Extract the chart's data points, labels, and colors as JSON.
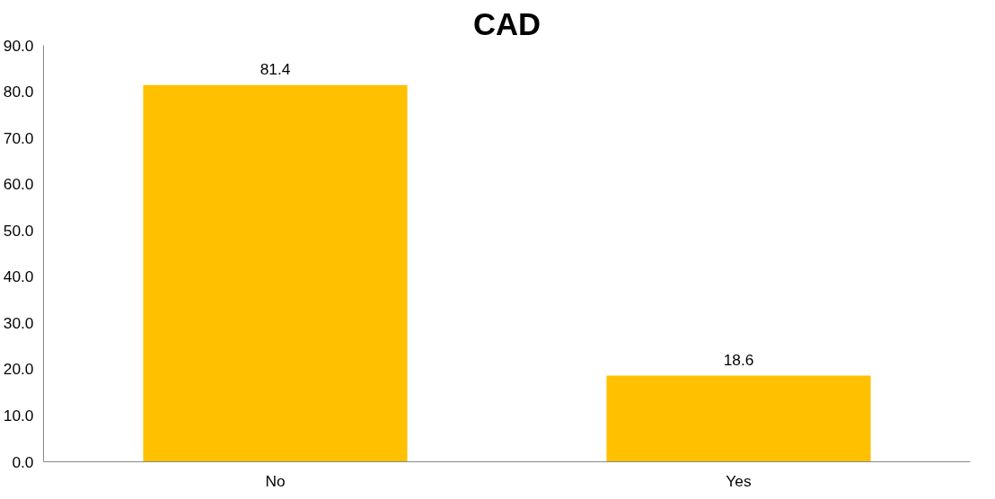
{
  "chart_data": {
    "type": "bar",
    "title": "CAD",
    "categories": [
      "No",
      "Yes"
    ],
    "values": [
      81.4,
      18.6
    ],
    "color": "#ffc000",
    "data_labels": true,
    "ylim": [
      0,
      90
    ],
    "yticks": [
      {
        "value": 0,
        "label": "0.0"
      },
      {
        "value": 10,
        "label": "10.0"
      },
      {
        "value": 20,
        "label": "20.0"
      },
      {
        "value": 30,
        "label": "30.0"
      },
      {
        "value": 40,
        "label": "40.0"
      },
      {
        "value": 50,
        "label": "50.0"
      },
      {
        "value": 60,
        "label": "60.0"
      },
      {
        "value": 70,
        "label": "70.0"
      },
      {
        "value": 80,
        "label": "80.0"
      },
      {
        "value": 90,
        "label": "90.0"
      }
    ],
    "grid": false
  }
}
